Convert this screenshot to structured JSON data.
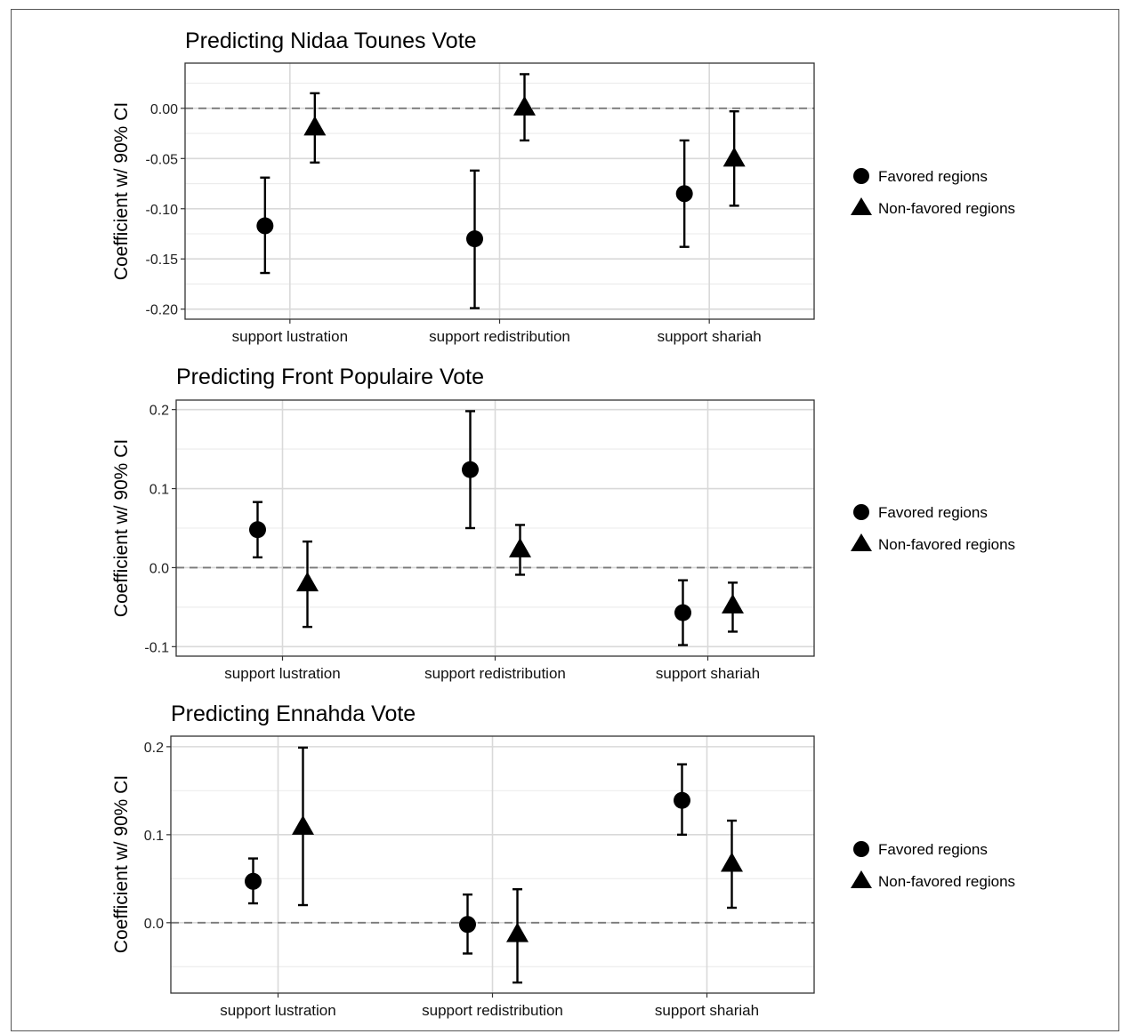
{
  "chart_data": [
    {
      "type": "scatter",
      "title": "Predicting Nidaa Tounes Vote",
      "ylabel": "Coefficient w/ 90% CI",
      "xlabel": "",
      "categories": [
        "support lustration",
        "support redistribution",
        "support shariah"
      ],
      "ylim": [
        -0.21,
        0.045
      ],
      "yticks": [
        0.0,
        -0.05,
        -0.1,
        -0.15,
        -0.2
      ],
      "ytick_labels": [
        "0.00",
        "-0.05",
        "-0.10",
        "-0.15",
        "-0.20"
      ],
      "reference_line": 0,
      "grid": true,
      "series": [
        {
          "name": "Favored regions",
          "marker": "circle",
          "values": [
            -0.117,
            -0.13,
            -0.085
          ],
          "lower": [
            -0.164,
            -0.199,
            -0.138
          ],
          "upper": [
            -0.069,
            -0.062,
            -0.032
          ]
        },
        {
          "name": "Non-favored regions",
          "marker": "triangle",
          "values": [
            -0.02,
            0.0,
            -0.051
          ],
          "lower": [
            -0.054,
            -0.032,
            -0.097
          ],
          "upper": [
            0.015,
            0.034,
            -0.003
          ]
        }
      ],
      "legend_position": "right"
    },
    {
      "type": "scatter",
      "title": "Predicting Front Populaire Vote",
      "ylabel": "Coefficient w/ 90% CI",
      "xlabel": "",
      "categories": [
        "support lustration",
        "support redistribution",
        "support shariah"
      ],
      "ylim": [
        -0.112,
        0.212
      ],
      "yticks": [
        0.2,
        0.1,
        0.0,
        -0.1
      ],
      "ytick_labels": [
        "0.2",
        "0.1",
        "0.0",
        "-0.1"
      ],
      "reference_line": 0,
      "grid": true,
      "series": [
        {
          "name": "Favored regions",
          "marker": "circle",
          "values": [
            0.048,
            0.124,
            -0.057
          ],
          "lower": [
            0.013,
            0.05,
            -0.098
          ],
          "upper": [
            0.083,
            0.198,
            -0.016
          ]
        },
        {
          "name": "Non-favored regions",
          "marker": "triangle",
          "values": [
            -0.021,
            0.022,
            -0.049
          ],
          "lower": [
            -0.075,
            -0.009,
            -0.081
          ],
          "upper": [
            0.033,
            0.054,
            -0.019
          ]
        }
      ],
      "legend_position": "right"
    },
    {
      "type": "scatter",
      "title": "Predicting Ennahda Vote",
      "ylabel": "Coefficient w/ 90% CI",
      "xlabel": "",
      "categories": [
        "support lustration",
        "support redistribution",
        "support shariah"
      ],
      "ylim": [
        -0.08,
        0.212
      ],
      "yticks": [
        0.2,
        0.1,
        0.0
      ],
      "ytick_labels": [
        "0.2",
        "0.1",
        "0.0"
      ],
      "reference_line": 0,
      "grid": true,
      "series": [
        {
          "name": "Favored regions",
          "marker": "circle",
          "values": [
            0.047,
            -0.002,
            0.139
          ],
          "lower": [
            0.022,
            -0.035,
            0.1
          ],
          "upper": [
            0.073,
            0.032,
            0.18
          ]
        },
        {
          "name": "Non-favored regions",
          "marker": "triangle",
          "values": [
            0.108,
            -0.014,
            0.066
          ],
          "lower": [
            0.02,
            -0.068,
            0.017
          ],
          "upper": [
            0.199,
            0.038,
            0.116
          ]
        }
      ],
      "legend_position": "right"
    }
  ]
}
